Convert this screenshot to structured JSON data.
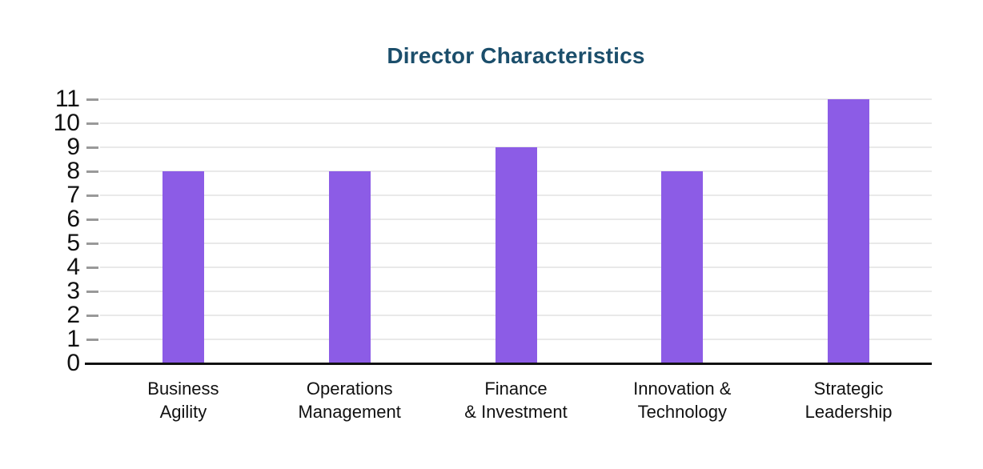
{
  "chart_data": {
    "type": "bar",
    "title": "Director Characteristics",
    "categories": [
      "Business\nAgility",
      "Operations\nManagement",
      "Finance\n& Investment",
      "Innovation &\nTechnology",
      "Strategic\nLeadership"
    ],
    "values": [
      8,
      8,
      9,
      8,
      11
    ],
    "xlabel": "",
    "ylabel": "",
    "ylim": [
      0,
      11
    ],
    "yticks": [
      0,
      1,
      2,
      3,
      4,
      5,
      6,
      7,
      8,
      9,
      10,
      11
    ],
    "grid": "horizontal",
    "legend": "none",
    "colors": {
      "bar": "#8c5ce6",
      "title": "#1b4e6b",
      "axis_line": "#111111",
      "tick": "#999999",
      "gridline": "#e9e9e9",
      "label": "#111111"
    }
  }
}
